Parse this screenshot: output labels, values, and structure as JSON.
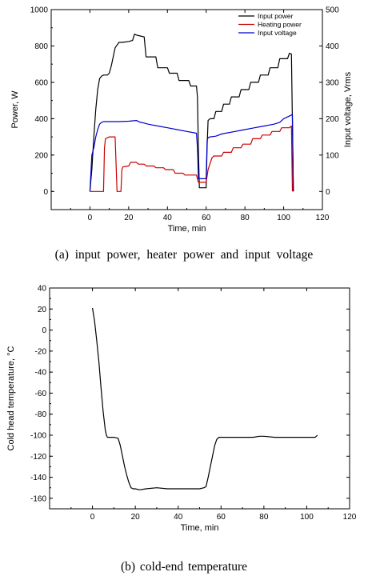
{
  "captions": {
    "a": "(a)  input power, heater power and input voltage",
    "b": "(b)  cold-end temperature"
  },
  "chart_data": [
    {
      "type": "line",
      "xlabel": "Time, min",
      "ylabel": "Power, W",
      "y2label": "Input voltage, Vrms",
      "xlim": [
        -20,
        120
      ],
      "ylim": [
        -100,
        1000
      ],
      "y2lim": [
        -50,
        500
      ],
      "xticks": [
        0,
        20,
        40,
        60,
        80,
        100,
        120
      ],
      "yticks": [
        0,
        200,
        400,
        600,
        800,
        1000
      ],
      "y2ticks": [
        0,
        100,
        200,
        300,
        400,
        500
      ],
      "grid": false,
      "legend": "top-right",
      "series": [
        {
          "name": "Input power",
          "color": "#000000",
          "axis": "left",
          "x": [
            0,
            1,
            2,
            3,
            4,
            5,
            6,
            7,
            9,
            10,
            11,
            12,
            13,
            15,
            17,
            20,
            22,
            23,
            24,
            26,
            28,
            29,
            34,
            35,
            40,
            41,
            45,
            46,
            51,
            52,
            55,
            55.5,
            56,
            56.5,
            60,
            60.5,
            61,
            62,
            64,
            65,
            68,
            69,
            72,
            73,
            77,
            78,
            82,
            83,
            87,
            88,
            92,
            93,
            97,
            98,
            102,
            103,
            104,
            105
          ],
          "y": [
            0,
            120,
            300,
            450,
            560,
            620,
            635,
            640,
            640,
            650,
            690,
            740,
            790,
            820,
            820,
            825,
            830,
            865,
            860,
            855,
            850,
            740,
            740,
            680,
            680,
            650,
            650,
            610,
            610,
            580,
            580,
            520,
            230,
            20,
            20,
            250,
            390,
            400,
            400,
            440,
            440,
            480,
            480,
            520,
            520,
            560,
            560,
            600,
            600,
            640,
            640,
            680,
            680,
            730,
            730,
            760,
            755,
            0
          ]
        },
        {
          "name": "Heating power",
          "color": "#cc0000",
          "axis": "left",
          "x": [
            0,
            7,
            7.5,
            8,
            9,
            10,
            13,
            13.5,
            14,
            16,
            16.5,
            17,
            20,
            21,
            24,
            25,
            28,
            29,
            33,
            34,
            38,
            39,
            43,
            44,
            48,
            49,
            55,
            56,
            60,
            61,
            63,
            64,
            68,
            69,
            73,
            74,
            78,
            79,
            83,
            84,
            88,
            89,
            93,
            94,
            98,
            99,
            103,
            104,
            104.5
          ],
          "y": [
            0,
            0,
            240,
            290,
            295,
            300,
            300,
            150,
            0,
            0,
            120,
            135,
            140,
            160,
            160,
            150,
            150,
            140,
            140,
            130,
            130,
            120,
            120,
            100,
            100,
            90,
            90,
            50,
            50,
            120,
            185,
            195,
            195,
            215,
            215,
            240,
            240,
            260,
            260,
            290,
            290,
            310,
            310,
            330,
            330,
            350,
            350,
            360,
            0
          ]
        },
        {
          "name": "Input voltage",
          "color": "#0000cc",
          "axis": "right",
          "x": [
            0,
            1,
            2,
            3,
            4,
            5,
            6,
            7,
            10,
            15,
            20,
            24,
            26,
            28,
            30,
            35,
            40,
            45,
            50,
            55,
            55.5,
            56,
            60,
            60.5,
            61,
            62,
            65,
            68,
            70,
            75,
            78,
            80,
            85,
            88,
            90,
            95,
            98,
            100,
            104,
            104.5,
            105
          ],
          "y": [
            0,
            100,
            120,
            150,
            170,
            185,
            190,
            192,
            192,
            192,
            193,
            195,
            190,
            188,
            185,
            180,
            175,
            170,
            165,
            160,
            120,
            35,
            35,
            140,
            148,
            150,
            152,
            158,
            160,
            165,
            168,
            170,
            175,
            178,
            180,
            185,
            190,
            200,
            210,
            212,
            0
          ]
        }
      ]
    },
    {
      "type": "line",
      "xlabel": "Time, min",
      "ylabel": "Cold head temperature, °C",
      "xlim": [
        -20,
        120
      ],
      "ylim": [
        -170,
        40
      ],
      "xticks": [
        0,
        20,
        40,
        60,
        80,
        100,
        120
      ],
      "yticks": [
        -160,
        -140,
        -120,
        -100,
        -80,
        -60,
        -40,
        -20,
        0,
        20,
        40
      ],
      "grid": false,
      "series": [
        {
          "name": "",
          "color": "#000000",
          "x": [
            0,
            1,
            2,
            3,
            4,
            5,
            6,
            6.5,
            7,
            8,
            10,
            12,
            13,
            14,
            15,
            16,
            17,
            18,
            19,
            20,
            22,
            25,
            30,
            35,
            40,
            45,
            50,
            52,
            53,
            54,
            55,
            56,
            57,
            58,
            59,
            60,
            62,
            65,
            70,
            75,
            78,
            80,
            85,
            90,
            95,
            100,
            103,
            104,
            105
          ],
          "y": [
            21,
            8,
            -10,
            -30,
            -55,
            -78,
            -95,
            -100,
            -102,
            -102,
            -102,
            -103,
            -110,
            -120,
            -130,
            -138,
            -145,
            -150,
            -151,
            -151,
            -152,
            -151,
            -150,
            -151,
            -151,
            -151,
            -151,
            -150,
            -149,
            -140,
            -130,
            -120,
            -110,
            -104,
            -102,
            -102,
            -102,
            -102,
            -102,
            -102,
            -101,
            -101,
            -102,
            -102,
            -102,
            -102,
            -102,
            -102,
            -100
          ]
        }
      ]
    }
  ]
}
